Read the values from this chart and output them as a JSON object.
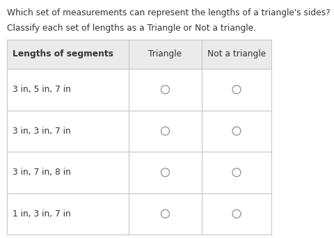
{
  "title": "Which set of measurements can represent the lengths of a triangle's sides?",
  "subtitle": "Classify each set of lengths as a Triangle or Not a triangle.",
  "col_headers": [
    "Lengths of segments",
    "Triangle",
    "Not a triangle"
  ],
  "rows": [
    "3 in, 5 in, 7 in",
    "3 in, 3 in, 7 in",
    "3 in, 7 in, 8 in",
    "1 in, 3 in, 7 in"
  ],
  "bg_color": "#ffffff",
  "header_bg": "#ebebeb",
  "border_color": "#c8c8c8",
  "text_color": "#333333",
  "title_fontsize": 8.8,
  "subtitle_fontsize": 8.8,
  "table_text_fontsize": 8.8,
  "circle_color": "#999999",
  "circle_lw": 1.0
}
